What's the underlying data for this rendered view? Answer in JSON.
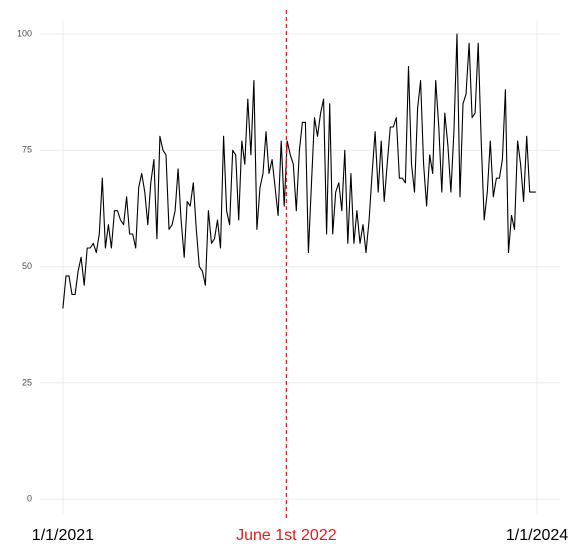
{
  "chart_data": {
    "type": "line",
    "x": [
      0,
      7,
      14,
      21,
      28,
      35,
      42,
      49,
      56,
      63,
      70,
      77,
      84,
      91,
      98,
      105,
      112,
      119,
      126,
      133,
      140,
      147,
      154,
      161,
      168,
      175,
      182,
      189,
      196,
      203,
      210,
      217,
      224,
      231,
      238,
      245,
      252,
      259,
      266,
      273,
      280,
      287,
      294,
      301,
      308,
      315,
      322,
      329,
      336,
      343,
      350,
      357,
      364,
      371,
      378,
      385,
      392,
      399,
      406,
      413,
      420,
      427,
      434,
      441,
      448,
      455,
      462,
      469,
      476,
      483,
      490,
      497,
      504,
      511,
      518,
      525,
      532,
      539,
      546,
      553,
      560,
      567,
      574,
      581,
      588,
      595,
      602,
      609,
      616,
      623,
      630,
      637,
      644,
      651,
      658,
      665,
      672,
      679,
      686,
      693,
      700,
      707,
      714,
      721,
      728,
      735,
      742,
      749,
      756,
      763,
      770,
      777,
      784,
      791,
      798,
      805,
      812,
      819,
      826,
      833,
      840,
      847,
      854,
      861,
      868,
      875,
      882,
      889,
      896,
      903,
      910,
      917,
      924,
      931,
      938,
      945,
      952,
      959,
      966,
      973,
      980,
      987,
      994,
      1001,
      1008,
      1015,
      1022,
      1029,
      1036,
      1043,
      1050,
      1057,
      1064,
      1071,
      1078,
      1085,
      1092
    ],
    "values": [
      41,
      48,
      48,
      44,
      44,
      49,
      52,
      46,
      54,
      54,
      55,
      53,
      57,
      69,
      54,
      59,
      54,
      62,
      62,
      60,
      59,
      65,
      57,
      57,
      54,
      67,
      70,
      66,
      59,
      68,
      73,
      56,
      78,
      75,
      74,
      58,
      59,
      62,
      71,
      60,
      52,
      64,
      63,
      68,
      58,
      50,
      49,
      46,
      62,
      55,
      56,
      60,
      54,
      78,
      62,
      59,
      75,
      74,
      60,
      77,
      72,
      86,
      74,
      90,
      58,
      67,
      70,
      79,
      70,
      73,
      67,
      61,
      77,
      63,
      77,
      74,
      72,
      62,
      75,
      81,
      81,
      53,
      68,
      82,
      78,
      83,
      86,
      57,
      85,
      57,
      66,
      68,
      62,
      75,
      55,
      70,
      55,
      62,
      55,
      59,
      53,
      60,
      70,
      79,
      66,
      77,
      64,
      72,
      80,
      80,
      82,
      69,
      69,
      68,
      93,
      72,
      66,
      84,
      90,
      72,
      63,
      74,
      70,
      90,
      80,
      66,
      83,
      76,
      66,
      79,
      100,
      65,
      85,
      87,
      98,
      82,
      83,
      98,
      77,
      60,
      66,
      77,
      65,
      69,
      69,
      73,
      88,
      53,
      61,
      58,
      77,
      72,
      64,
      78,
      66,
      66,
      66
    ],
    "color": "#000000",
    "xlim": [
      -53,
      1148
    ],
    "xticks": [
      {
        "value": 0,
        "label": "1/1/2021"
      },
      {
        "value": 516,
        "label": "June 1st 2022"
      },
      {
        "value": 1095,
        "label": "1/1/2024"
      }
    ],
    "ylim": [
      -3.4,
      103
    ],
    "yticks": [
      0,
      25,
      50,
      75,
      100
    ],
    "grid": true,
    "vline": {
      "x": 516,
      "color": "#e41a1c"
    }
  }
}
